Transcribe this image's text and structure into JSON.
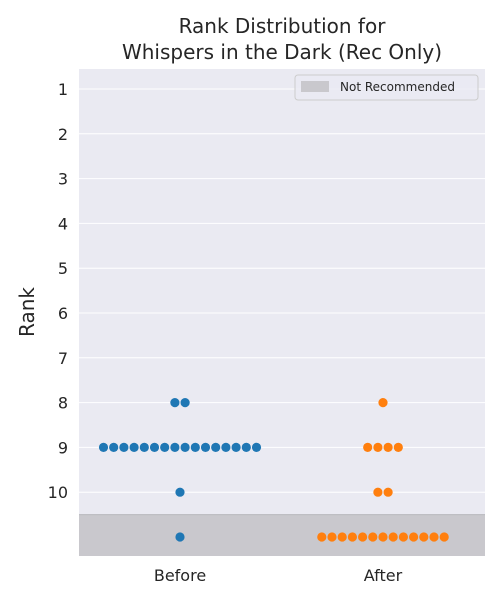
{
  "chart_data": {
    "type": "scatter",
    "title_lines": [
      "Rank Distribution for",
      "Whispers in the Dark (Rec Only)"
    ],
    "ylabel": "Rank",
    "categories": [
      "Before",
      "After"
    ],
    "y_ticks": [
      "1",
      "2",
      "3",
      "4",
      "5",
      "6",
      "7",
      "8",
      "9",
      "10"
    ],
    "y_direction": "inverted",
    "grid": true,
    "legend": {
      "position": "top-right",
      "items": [
        {
          "label": "Not Recommended",
          "color": "#c9c8cd"
        }
      ]
    },
    "not_recommended_region": true,
    "series": [
      {
        "category": "Before",
        "color": "#1f77b4",
        "counts": {
          "8": 2,
          "9": 16,
          "10": 1,
          "not_recommended": 1
        }
      },
      {
        "category": "After",
        "color": "#ff7f0e",
        "counts": {
          "8": 1,
          "9": 4,
          "10": 2,
          "not_recommended": 13
        }
      }
    ]
  },
  "colors": {
    "plot_background": "#eaeaf2",
    "grid": "#ffffff",
    "shade": "#c9c8cd"
  }
}
